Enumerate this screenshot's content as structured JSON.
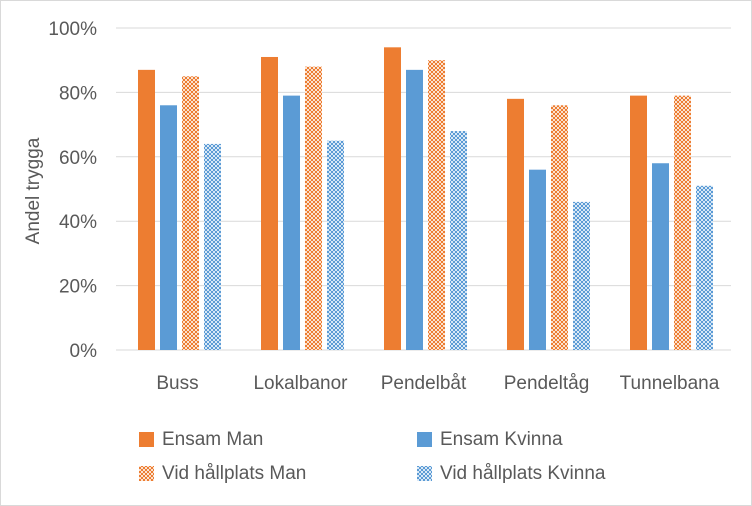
{
  "chart_data": {
    "type": "bar",
    "title": "",
    "xlabel": "",
    "ylabel": "Andel trygga",
    "ylim": [
      0,
      100
    ],
    "yticks": [
      "0%",
      "20%",
      "40%",
      "60%",
      "80%",
      "100%"
    ],
    "grid": true,
    "legend_position": "bottom",
    "categories": [
      "Buss",
      "Lokalbanor",
      "Pendelbåt",
      "Pendeltåg",
      "Tunnelbana"
    ],
    "series": [
      {
        "name": "Ensam Man",
        "color": "#ED7D31",
        "pattern": "solid",
        "values": [
          87,
          91,
          94,
          78,
          79
        ]
      },
      {
        "name": "Ensam Kvinna",
        "color": "#5B9BD5",
        "pattern": "solid",
        "values": [
          76,
          79,
          87,
          56,
          58
        ]
      },
      {
        "name": "Vid hållplats Man",
        "color": "#ED7D31",
        "pattern": "dotted",
        "values": [
          85,
          88,
          90,
          76,
          79
        ]
      },
      {
        "name": "Vid hållplats Kvinna",
        "color": "#5B9BD5",
        "pattern": "dotted",
        "values": [
          64,
          65,
          68,
          46,
          51
        ]
      }
    ]
  }
}
